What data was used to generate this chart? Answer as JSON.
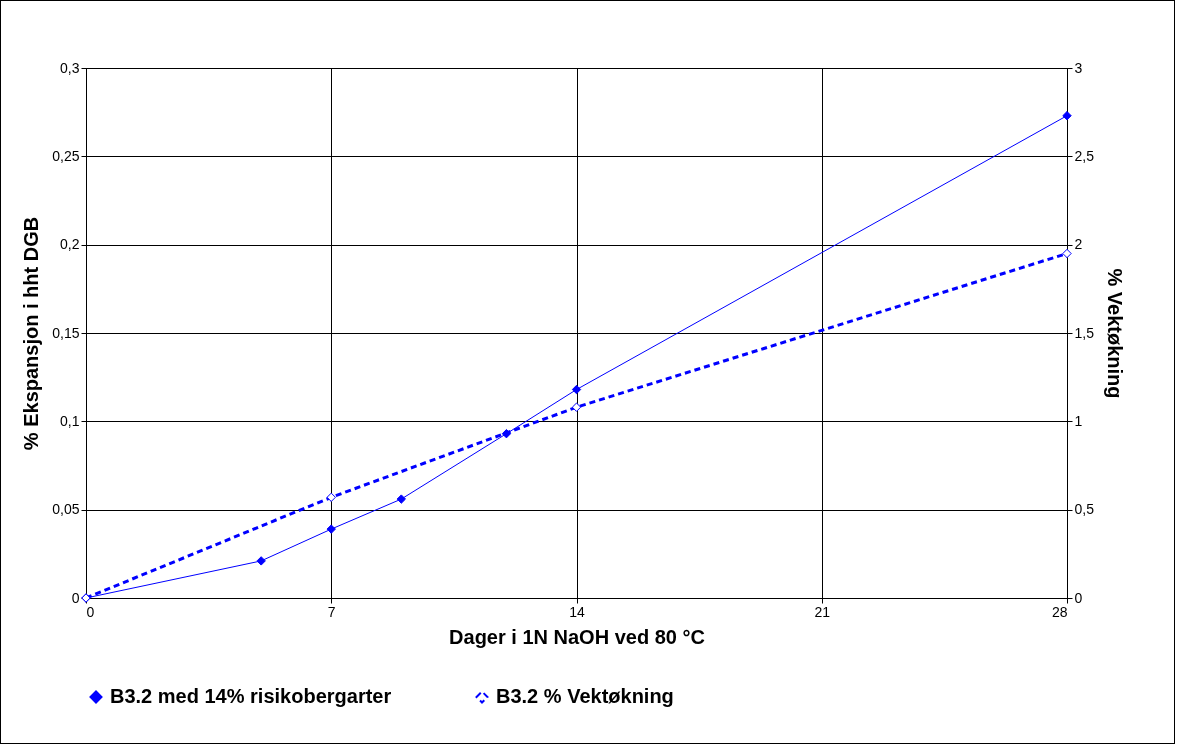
{
  "chart_data": {
    "type": "line",
    "xlabel": "Dager i 1N NaOH ved 80 °C",
    "ylabel": "% Ekspansjon i hht DGB",
    "y2label": "% Vektøkning",
    "xlim": [
      0,
      28
    ],
    "xticks": [
      0,
      7,
      14,
      21,
      28
    ],
    "ylim": [
      0,
      0.3
    ],
    "yticks": [
      0,
      {
        "value": 0.05,
        "label": "0,05"
      },
      {
        "value": 0.1,
        "label": "0,1"
      },
      {
        "value": 0.15,
        "label": "0,15"
      },
      {
        "value": 0.2,
        "label": "0,2"
      },
      {
        "value": 0.25,
        "label": "0,25"
      },
      {
        "value": 0.3,
        "label": "0,3"
      }
    ],
    "y2lim": [
      0,
      3
    ],
    "y2ticks": [
      0,
      {
        "value": 0.5,
        "label": "0,5"
      },
      1,
      {
        "value": 1.5,
        "label": "1,5"
      },
      2,
      {
        "value": 2.5,
        "label": "2,5"
      },
      3
    ],
    "grid": true,
    "legend": "bottom",
    "marker": "diamond",
    "series": [
      {
        "name": "B3.2 med 14% risikobergarter",
        "color": "#0000ff",
        "line_style": "solid",
        "x": [
          0,
          5,
          7,
          9,
          12,
          14,
          28
        ],
        "values": [
          0,
          0.021,
          0.039,
          0.056,
          0.093,
          0.118,
          0.273
        ]
      },
      {
        "name": "B3.2 % Vektøkning",
        "color": "#0000ff",
        "line_style": "dashed",
        "axis": "y2",
        "x": [
          0,
          7,
          14,
          28
        ],
        "values": [
          0,
          0.57,
          1.08,
          1.95
        ]
      }
    ]
  }
}
